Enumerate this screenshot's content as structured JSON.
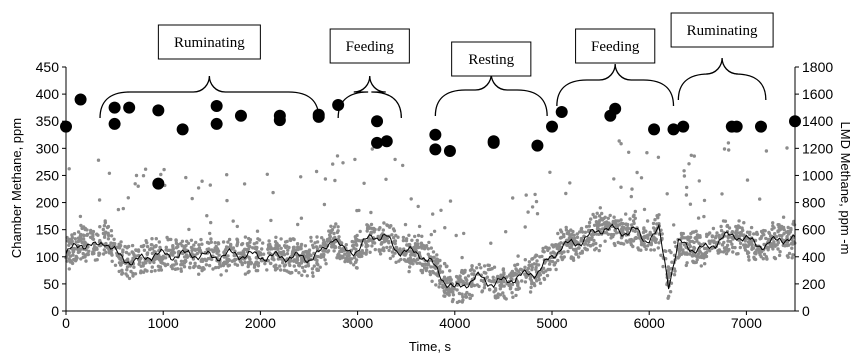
{
  "chart_data": {
    "type": "scatter",
    "xlabel": "Time, s",
    "ylabel_left": "Chamber Methane, ppm",
    "ylabel_right": "LMD Methane, ppm -m",
    "xlim": [
      0,
      7500
    ],
    "ylim_left": [
      0,
      450
    ],
    "ylim_right": [
      0,
      1800
    ],
    "x_ticks": [
      0,
      1000,
      2000,
      3000,
      4000,
      5000,
      6000,
      7000
    ],
    "y_left_ticks": [
      0,
      50,
      100,
      150,
      200,
      250,
      300,
      350,
      400,
      450
    ],
    "y_right_ticks": [
      0,
      200,
      400,
      600,
      800,
      1000,
      1200,
      1400,
      1600,
      1800
    ],
    "grid": false,
    "colors": {
      "lmd_points": "#8c8c8c",
      "chamber_points": "#000000",
      "moving_average": "#000000"
    },
    "phases": [
      {
        "label": "Ruminating",
        "x_start": 350,
        "x_end": 2600
      },
      {
        "label": "Feeding",
        "x_start": 2800,
        "x_end": 3450
      },
      {
        "label": "Resting",
        "x_start": 3800,
        "x_end": 4950
      },
      {
        "label": "Feeding",
        "x_start": 5050,
        "x_end": 6250
      },
      {
        "label": "Ruminating",
        "x_start": 6300,
        "x_end": 7200
      }
    ],
    "series": [
      {
        "axis": "left",
        "style": "large-dots",
        "points": [
          [
            0,
            340
          ],
          [
            150,
            390
          ],
          [
            500,
            375
          ],
          [
            500,
            345
          ],
          [
            650,
            375
          ],
          [
            950,
            370
          ],
          [
            950,
            235
          ],
          [
            1200,
            335
          ],
          [
            1550,
            378
          ],
          [
            1550,
            345
          ],
          [
            1800,
            360
          ],
          [
            2200,
            360
          ],
          [
            2200,
            352
          ],
          [
            2600,
            358
          ],
          [
            2600,
            362
          ],
          [
            2800,
            380
          ],
          [
            3200,
            350
          ],
          [
            3200,
            310
          ],
          [
            3300,
            313
          ],
          [
            3800,
            325
          ],
          [
            3800,
            298
          ],
          [
            3950,
            295
          ],
          [
            4400,
            313
          ],
          [
            4400,
            310
          ],
          [
            4850,
            305
          ],
          [
            5000,
            340
          ],
          [
            5100,
            367
          ],
          [
            5600,
            360
          ],
          [
            5650,
            373
          ],
          [
            6050,
            335
          ],
          [
            6250,
            335
          ],
          [
            6350,
            340
          ],
          [
            6850,
            340
          ],
          [
            6900,
            340
          ],
          [
            7150,
            340
          ],
          [
            7500,
            350
          ]
        ]
      },
      {
        "axis": "right",
        "style": "small-dots-and-moving-average",
        "profile": [
          [
            0,
            420
          ],
          [
            150,
            500
          ],
          [
            300,
            470
          ],
          [
            400,
            520
          ],
          [
            550,
            400
          ],
          [
            700,
            360
          ],
          [
            900,
            420
          ],
          [
            1100,
            410
          ],
          [
            1300,
            420
          ],
          [
            1500,
            400
          ],
          [
            1700,
            420
          ],
          [
            1900,
            410
          ],
          [
            2100,
            400
          ],
          [
            2300,
            400
          ],
          [
            2500,
            390
          ],
          [
            2650,
            440
          ],
          [
            2750,
            560
          ],
          [
            2850,
            440
          ],
          [
            3000,
            450
          ],
          [
            3150,
            560
          ],
          [
            3300,
            540
          ],
          [
            3400,
            450
          ],
          [
            3500,
            440
          ],
          [
            3650,
            420
          ],
          [
            3750,
            360
          ],
          [
            3900,
            220
          ],
          [
            4000,
            160
          ],
          [
            4100,
            200
          ],
          [
            4250,
            250
          ],
          [
            4400,
            200
          ],
          [
            4550,
            230
          ],
          [
            4700,
            260
          ],
          [
            4850,
            290
          ],
          [
            4950,
            360
          ],
          [
            5100,
            480
          ],
          [
            5250,
            500
          ],
          [
            5400,
            560
          ],
          [
            5550,
            620
          ],
          [
            5700,
            580
          ],
          [
            5850,
            600
          ],
          [
            5950,
            520
          ],
          [
            6100,
            590
          ],
          [
            6200,
            200
          ],
          [
            6300,
            500
          ],
          [
            6450,
            460
          ],
          [
            6600,
            460
          ],
          [
            6750,
            540
          ],
          [
            6900,
            560
          ],
          [
            7050,
            510
          ],
          [
            7200,
            480
          ],
          [
            7350,
            540
          ],
          [
            7500,
            520
          ]
        ]
      }
    ]
  }
}
